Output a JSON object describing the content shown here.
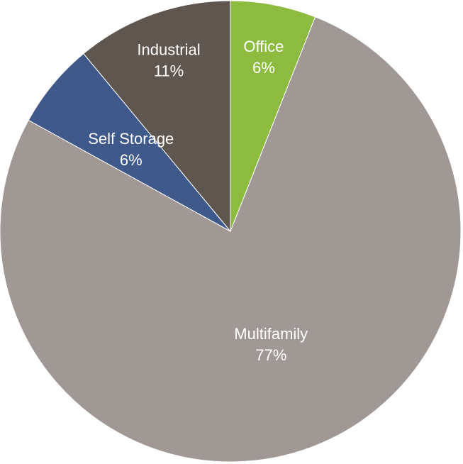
{
  "chart_data": {
    "type": "pie",
    "categories": [
      "Office",
      "Multifamily",
      "Self Storage",
      "Industrial"
    ],
    "values": [
      6,
      77,
      6,
      11
    ],
    "value_labels": [
      "6%",
      "77%",
      "6%",
      "11%"
    ],
    "colors": [
      "#8cbb3f",
      "#9f9894",
      "#3f5a8a",
      "#5f5650"
    ],
    "start_angle_deg": 0,
    "direction": "clockwise",
    "legend": "none",
    "labels_position": "inside"
  }
}
